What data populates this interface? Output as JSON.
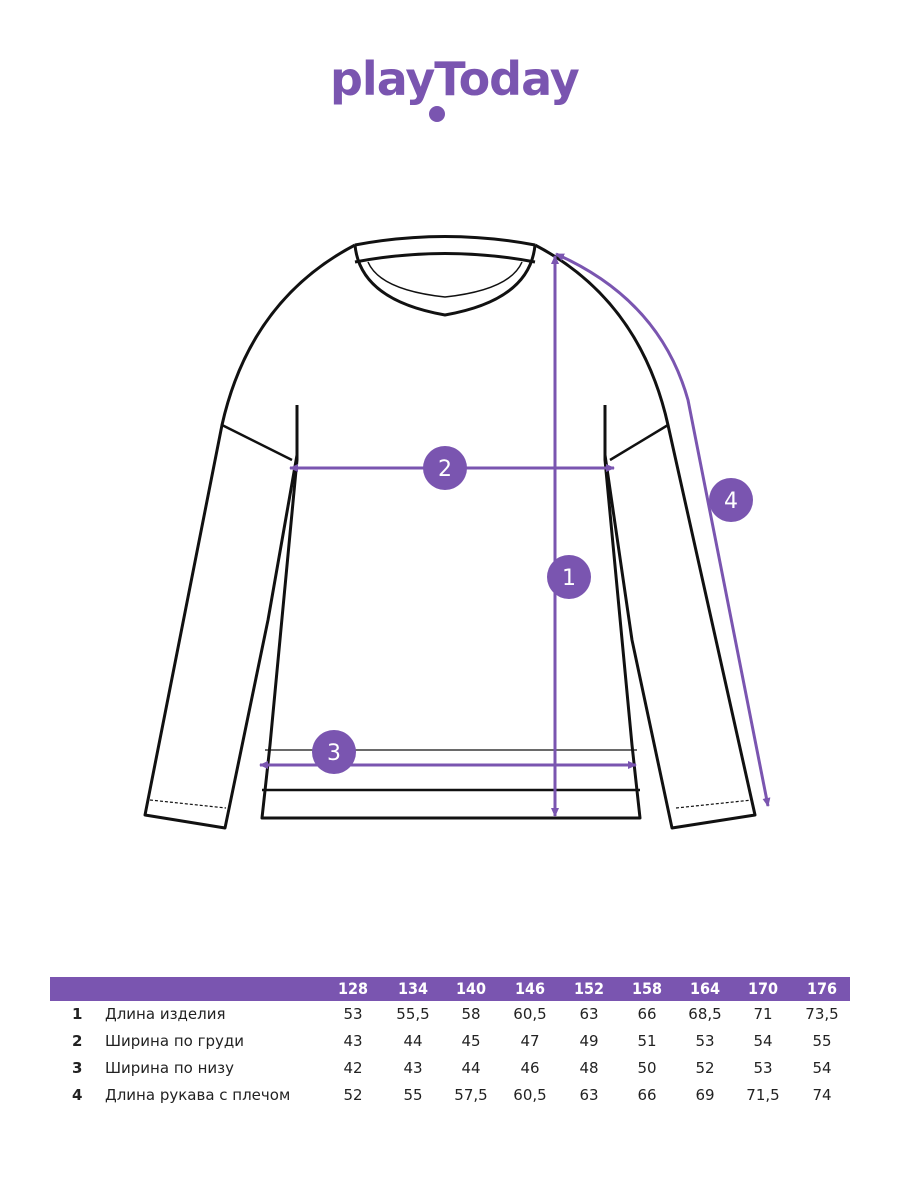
{
  "brand": {
    "logo_text": "playToday",
    "color": "#7a55b0"
  },
  "markers": [
    "1",
    "2",
    "3",
    "4"
  ],
  "table": {
    "sizes": [
      "128",
      "134",
      "140",
      "146",
      "152",
      "158",
      "164",
      "170",
      "176"
    ],
    "rows": [
      {
        "num": "1",
        "label": "Длина изделия",
        "values": [
          "53",
          "55,5",
          "58",
          "60,5",
          "63",
          "66",
          "68,5",
          "71",
          "73,5"
        ]
      },
      {
        "num": "2",
        "label": "Ширина по груди",
        "values": [
          "43",
          "44",
          "45",
          "47",
          "49",
          "51",
          "53",
          "54",
          "55"
        ]
      },
      {
        "num": "3",
        "label": "Ширина по низу",
        "values": [
          "42",
          "43",
          "44",
          "46",
          "48",
          "50",
          "52",
          "53",
          "54"
        ]
      },
      {
        "num": "4",
        "label": "Длина рукава с плечом",
        "values": [
          "52",
          "55",
          "57,5",
          "60,5",
          "63",
          "66",
          "69",
          "71,5",
          "74"
        ]
      }
    ]
  }
}
